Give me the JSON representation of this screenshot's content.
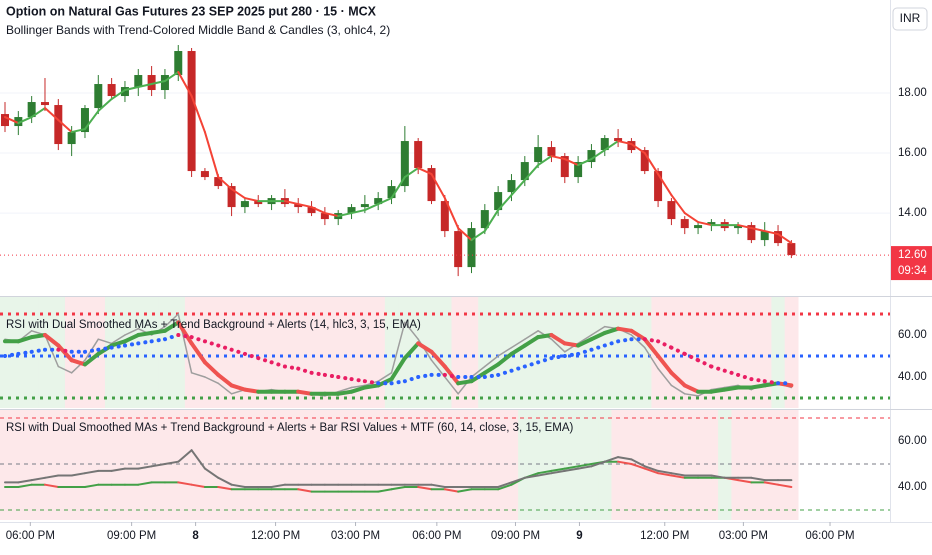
{
  "chart_data": [
    {
      "type": "candlestick",
      "title": "Option on Natural Gas Futures 23 SEP 2025 put 280 · 15 · MCX",
      "subtitle": "Bollinger Bands with Trend-Colored Middle Band & Candles (3, ohlc4, 2)",
      "currency": "INR",
      "xlim": [
        -0.375,
        66.4
      ],
      "ylim": [
        11.27,
        21.1
      ],
      "yticks": [
        {
          "value": 18,
          "label": "18.00"
        },
        {
          "value": 16,
          "label": "16.00"
        },
        {
          "value": 14,
          "label": "14.00"
        }
      ],
      "grid": true,
      "up_color": "#2e7d32",
      "down_color": "#c62828",
      "open": [
        17.3,
        16.9,
        17.2,
        17.7,
        17.6,
        16.3,
        16.7,
        17.5,
        18.3,
        17.9,
        18.2,
        18.6,
        18.1,
        18.6,
        19.4,
        15.4,
        15.2,
        14.9,
        14.2,
        14.4,
        14.3,
        14.5,
        14.3,
        14.2,
        14.0,
        13.8,
        14.0,
        14.2,
        14.3,
        14.5,
        14.9,
        16.4,
        15.5,
        14.4,
        13.4,
        12.2,
        13.5,
        14.1,
        14.7,
        15.1,
        15.7,
        16.2,
        15.9,
        15.2,
        15.7,
        16.1,
        16.5,
        16.4,
        16.1,
        15.4,
        14.4,
        13.8,
        13.5,
        13.6,
        13.7,
        13.5,
        13.6,
        13.1,
        13.4,
        13.0
      ],
      "high": [
        17.7,
        17.4,
        17.9,
        18.5,
        17.8,
        16.9,
        17.6,
        18.6,
        18.5,
        18.4,
        18.8,
        18.9,
        18.8,
        19.6,
        19.5,
        15.5,
        15.3,
        15.0,
        14.5,
        14.6,
        14.6,
        14.8,
        14.5,
        14.4,
        14.2,
        14.1,
        14.3,
        14.6,
        14.7,
        15.1,
        16.9,
        16.5,
        15.6,
        14.6,
        13.6,
        13.7,
        14.3,
        14.9,
        15.3,
        15.9,
        16.6,
        16.4,
        16.0,
        15.9,
        16.3,
        16.6,
        16.8,
        16.5,
        16.2,
        15.5,
        14.5,
        13.9,
        13.7,
        13.8,
        13.8,
        13.7,
        13.7,
        13.7,
        13.6,
        13.1
      ],
      "low": [
        16.7,
        16.6,
        17.0,
        17.4,
        16.1,
        15.9,
        16.5,
        17.3,
        17.8,
        17.7,
        17.9,
        17.9,
        17.8,
        18.4,
        15.2,
        15.1,
        14.8,
        13.9,
        14.0,
        14.2,
        14.1,
        14.2,
        14.0,
        13.9,
        13.6,
        13.6,
        13.8,
        14.0,
        14.1,
        14.3,
        14.7,
        15.3,
        14.3,
        13.2,
        11.9,
        12.0,
        13.3,
        13.9,
        14.4,
        14.9,
        15.5,
        15.7,
        15.0,
        15.0,
        15.5,
        15.9,
        16.2,
        16.0,
        15.3,
        14.2,
        13.6,
        13.3,
        13.3,
        13.4,
        13.4,
        13.3,
        13.0,
        12.9,
        12.9,
        12.5
      ],
      "close": [
        16.9,
        17.2,
        17.7,
        17.6,
        16.3,
        16.7,
        17.5,
        18.3,
        17.9,
        18.2,
        18.6,
        18.1,
        18.6,
        19.4,
        15.4,
        15.2,
        14.9,
        14.2,
        14.4,
        14.3,
        14.5,
        14.3,
        14.2,
        14.0,
        13.8,
        14.0,
        14.2,
        14.3,
        14.5,
        14.9,
        16.4,
        15.5,
        14.4,
        13.4,
        12.2,
        13.5,
        14.1,
        14.7,
        15.1,
        15.7,
        16.2,
        15.9,
        15.2,
        15.7,
        16.1,
        16.5,
        16.4,
        16.1,
        15.4,
        14.4,
        13.8,
        13.5,
        13.6,
        13.7,
        13.5,
        13.6,
        13.1,
        13.4,
        13.0,
        12.6
      ],
      "middle_band": {
        "up_color": "#4caf50",
        "down_color": "#f44336",
        "values": [
          17.2,
          17.0,
          17.2,
          17.5,
          17.1,
          16.7,
          16.8,
          17.4,
          17.8,
          18.1,
          18.2,
          18.3,
          18.4,
          18.7,
          17.9,
          16.7,
          15.2,
          14.8,
          14.5,
          14.4,
          14.4,
          14.4,
          14.3,
          14.2,
          14.0,
          13.9,
          14.0,
          14.1,
          14.3,
          14.5,
          15.2,
          15.5,
          15.3,
          14.5,
          13.5,
          13.1,
          13.4,
          14.1,
          14.6,
          15.1,
          15.6,
          15.9,
          15.8,
          15.6,
          15.8,
          16.1,
          16.4,
          16.3,
          16.0,
          15.3,
          14.6,
          14.0,
          13.7,
          13.6,
          13.6,
          13.6,
          13.5,
          13.4,
          13.3,
          13.0
        ]
      },
      "last_price": {
        "value": 12.6,
        "label": "12.60",
        "countdown": "09:34",
        "color": "#f23645"
      }
    },
    {
      "type": "line",
      "title": "RSI with Dual Smoothed MAs + Trend Background + Alerts (14, hlc3, 3, 15, EMA)",
      "xlim": [
        -0.375,
        66.4
      ],
      "ylim": [
        25.24,
        78.1
      ],
      "yticks": [
        {
          "value": 60,
          "label": "60.00"
        },
        {
          "value": 40,
          "label": "40.00"
        }
      ],
      "levels": [
        {
          "value": 70,
          "color": "#f23645",
          "style": "dotted"
        },
        {
          "value": 50,
          "color": "#2962ff",
          "style": "dotted"
        },
        {
          "value": 30,
          "color": "#43a047",
          "style": "dotted"
        }
      ],
      "background": {
        "up_color": "#e8f5e9",
        "down_color": "#fde8ea",
        "compare": [
          1,
          2
        ]
      },
      "series": [
        {
          "color": "#9e9e9e",
          "width": 1.5,
          "values": [
            58,
            57,
            62,
            60,
            45,
            42,
            48,
            58,
            56,
            60,
            63,
            60,
            64,
            70,
            42,
            40,
            37,
            32,
            34,
            33,
            34,
            33,
            33,
            32,
            31,
            33,
            35,
            36,
            38,
            42,
            66,
            58,
            48,
            40,
            32,
            40,
            45,
            50,
            54,
            58,
            62,
            58,
            52,
            56,
            60,
            64,
            63,
            60,
            54,
            44,
            36,
            32,
            31,
            34,
            35,
            36,
            34,
            37,
            37,
            35
          ]
        },
        {
          "up_color": "#43a047",
          "down_color": "#ef5350",
          "width": 4,
          "values": [
            57,
            57,
            59,
            60,
            55,
            48,
            46,
            51,
            55,
            57,
            60,
            61,
            62,
            66,
            56,
            47,
            41,
            36,
            34,
            33,
            33,
            33,
            33,
            32,
            32,
            32,
            33,
            35,
            36,
            39,
            49,
            56,
            52,
            45,
            37,
            38,
            42,
            46,
            51,
            55,
            59,
            60,
            56,
            55,
            58,
            61,
            63,
            62,
            58,
            50,
            42,
            36,
            33,
            33,
            34,
            35,
            35,
            36,
            37,
            36
          ]
        },
        {
          "up_color": "#2962ff",
          "down_color": "#e91e63",
          "width": 4,
          "style": "dotted",
          "values": [
            50,
            51,
            52,
            53,
            53,
            52,
            52,
            53,
            54,
            55,
            56,
            57,
            58,
            60,
            59,
            57,
            55,
            53,
            51,
            49,
            47,
            45,
            44,
            42,
            41,
            40,
            39,
            38,
            37,
            37,
            38,
            40,
            41,
            41,
            40,
            40,
            40,
            41,
            43,
            45,
            47,
            49,
            50,
            51,
            53,
            55,
            57,
            58,
            58,
            57,
            54,
            51,
            48,
            45,
            43,
            41,
            39,
            38,
            37,
            37
          ]
        }
      ]
    },
    {
      "type": "line",
      "title": "RSI with Dual Smoothed MAs + Trend Background + Alerts + Bar RSI Values + MTF (60, 14, close, 3, 15, EMA)",
      "xlim": [
        -0.375,
        66.4
      ],
      "ylim": [
        25.65,
        73.48
      ],
      "yticks": [
        {
          "value": 60,
          "label": "60.00"
        },
        {
          "value": 40,
          "label": "40.00"
        }
      ],
      "levels": [
        {
          "value": 70,
          "color": "#f23645",
          "style": "dashed"
        },
        {
          "value": 50,
          "color": "#787b86",
          "style": "dashed"
        },
        {
          "value": 30,
          "color": "#43a047",
          "style": "dashed"
        }
      ],
      "background": {
        "up_color": "#e8f5e9",
        "down_color": "#fde8ea",
        "compare": [
          0,
          1
        ]
      },
      "xticks": [
        {
          "value": 1.9,
          "label": "06:00 PM"
        },
        {
          "value": 9.5,
          "label": "09:00 PM"
        },
        {
          "value": 14.3,
          "label": "8"
        },
        {
          "value": 20.3,
          "label": "12:00 PM"
        },
        {
          "value": 26.3,
          "label": "03:00 PM"
        },
        {
          "value": 32.4,
          "label": "06:00 PM"
        },
        {
          "value": 38.3,
          "label": "09:00 PM"
        },
        {
          "value": 43.1,
          "label": "9"
        },
        {
          "value": 49.5,
          "label": "12:00 PM"
        },
        {
          "value": 55.4,
          "label": "03:00 PM"
        },
        {
          "value": 61.9,
          "label": "06:00 PM"
        }
      ],
      "series": [
        {
          "up_color": "#43a047",
          "down_color": "#ef5350",
          "width": 2,
          "values": [
            40,
            40,
            41,
            41,
            40,
            40,
            40,
            41,
            41,
            41,
            41,
            42,
            42,
            42,
            41,
            40,
            40,
            39,
            39,
            39,
            39,
            39,
            39,
            38,
            38,
            38,
            38,
            38,
            38,
            39,
            40,
            40,
            39,
            39,
            38,
            39,
            39,
            39,
            41,
            44,
            46,
            47,
            48,
            49,
            50,
            51,
            51,
            50,
            48,
            46,
            45,
            44,
            44,
            44,
            44,
            43,
            42,
            42,
            41,
            40
          ]
        },
        {
          "color": "#757575",
          "width": 2,
          "values": [
            42,
            42,
            43,
            44,
            45,
            45,
            46,
            47,
            47,
            48,
            48,
            49,
            50,
            51,
            56,
            48,
            44,
            41,
            40,
            40,
            40,
            41,
            41,
            41,
            41,
            41,
            41,
            41,
            41,
            41,
            41,
            41,
            41,
            40,
            40,
            40,
            40,
            40,
            42,
            44,
            45,
            46,
            47,
            48,
            49,
            51,
            53,
            52,
            49,
            47,
            46,
            45,
            45,
            45,
            44,
            44,
            44,
            43,
            43,
            43
          ]
        }
      ]
    }
  ]
}
